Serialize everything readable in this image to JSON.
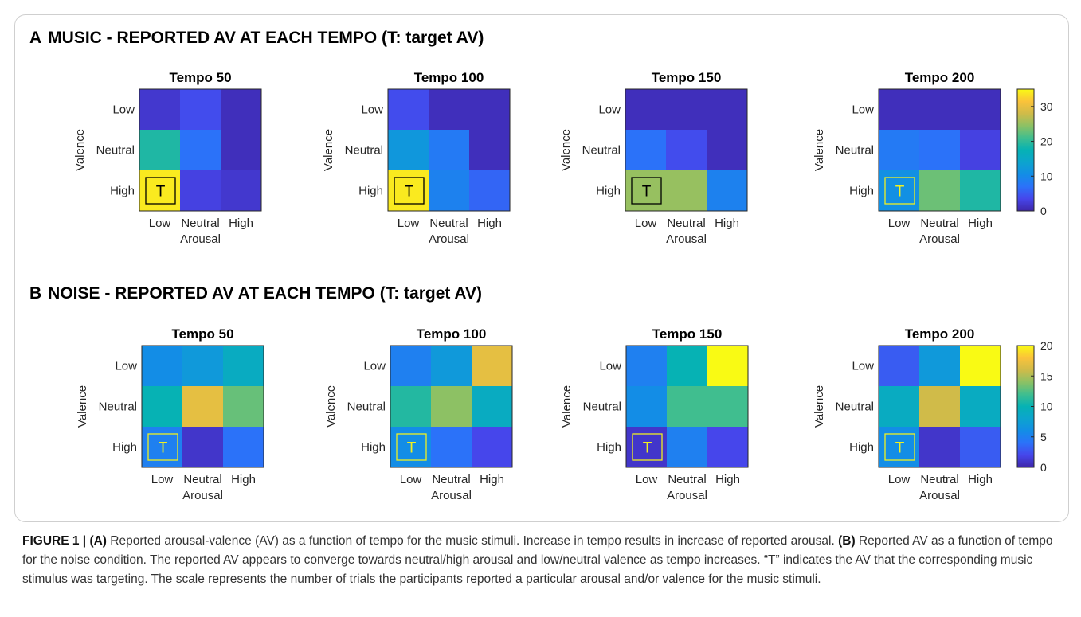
{
  "figure": {
    "panelA": {
      "letter": "A",
      "title": "MUSIC - REPORTED AV AT EACH TEMPO (T: target AV)"
    },
    "panelB": {
      "letter": "B",
      "title": "NOISE - REPORTED AV AT EACH TEMPO (T: target AV)"
    }
  },
  "caption": {
    "label": "FIGURE 1 |",
    "a_marker": "(A)",
    "a_text": " Reported arousal-valence (AV) as a function of tempo for the music stimuli. Increase in tempo results in increase of reported arousal. ",
    "b_marker": "(B)",
    "b_text": " Reported AV as a function of tempo for the noise condition. The reported AV appears to converge towards neutral/high arousal and low/neutral valence as tempo increases. “T” indicates the AV that the corresponding music stimulus was targeting. The scale represents the number of trials the participants reported a particular arousal and/or valence for the music stimuli."
  },
  "chart_data": [
    {
      "type": "heatmap",
      "panel": "A",
      "title": "Tempo 50",
      "xlabel": "Arousal",
      "ylabel": "Valence",
      "x_categories": [
        "Low",
        "Neutral",
        "High"
      ],
      "y_categories": [
        "Low",
        "Neutral",
        "High"
      ],
      "values": [
        [
          2,
          4,
          1
        ],
        [
          19,
          7,
          1
        ],
        [
          34,
          3,
          2
        ]
      ],
      "clim": [
        0,
        35
      ],
      "target": {
        "row": 2,
        "col": 0
      },
      "target_label": "T"
    },
    {
      "type": "heatmap",
      "panel": "A",
      "title": "Tempo 100",
      "xlabel": "Arousal",
      "ylabel": "Valence",
      "x_categories": [
        "Low",
        "Neutral",
        "High"
      ],
      "y_categories": [
        "Low",
        "Neutral",
        "High"
      ],
      "values": [
        [
          4,
          1,
          1
        ],
        [
          12,
          8,
          1
        ],
        [
          34,
          9,
          6
        ]
      ],
      "clim": [
        0,
        35
      ],
      "target": {
        "row": 2,
        "col": 0
      },
      "target_label": "T"
    },
    {
      "type": "heatmap",
      "panel": "A",
      "title": "Tempo 150",
      "xlabel": "Arousal",
      "ylabel": "Valence",
      "x_categories": [
        "Low",
        "Neutral",
        "High"
      ],
      "y_categories": [
        "Low",
        "Neutral",
        "High"
      ],
      "values": [
        [
          1,
          1,
          1
        ],
        [
          7,
          4,
          1
        ],
        [
          25,
          25,
          9
        ]
      ],
      "clim": [
        0,
        35
      ],
      "target": {
        "row": 2,
        "col": 0
      },
      "target_label": "T"
    },
    {
      "type": "heatmap",
      "panel": "A",
      "title": "Tempo 200",
      "xlabel": "Arousal",
      "ylabel": "Valence",
      "x_categories": [
        "Low",
        "Neutral",
        "High"
      ],
      "y_categories": [
        "Low",
        "Neutral",
        "High"
      ],
      "values": [
        [
          1,
          1,
          1
        ],
        [
          8,
          7,
          3
        ],
        [
          11,
          23,
          19
        ]
      ],
      "clim": [
        0,
        35
      ],
      "target": {
        "row": 2,
        "col": 0
      },
      "target_label": "T",
      "colorbar": {
        "ticks": [
          0,
          10,
          20,
          30
        ]
      }
    },
    {
      "type": "heatmap",
      "panel": "B",
      "title": "Tempo 50",
      "xlabel": "Arousal",
      "ylabel": "Valence",
      "x_categories": [
        "Low",
        "Neutral",
        "High"
      ],
      "y_categories": [
        "Low",
        "Neutral",
        "High"
      ],
      "values": [
        [
          6,
          7,
          9
        ],
        [
          10,
          17,
          13
        ],
        [
          5,
          1,
          4
        ]
      ],
      "clim": [
        0,
        20
      ],
      "target": {
        "row": 2,
        "col": 0
      },
      "target_label": "T"
    },
    {
      "type": "heatmap",
      "panel": "B",
      "title": "Tempo 100",
      "xlabel": "Arousal",
      "ylabel": "Valence",
      "x_categories": [
        "Low",
        "Neutral",
        "High"
      ],
      "y_categories": [
        "Low",
        "Neutral",
        "High"
      ],
      "values": [
        [
          5,
          7,
          17
        ],
        [
          11,
          14,
          9
        ],
        [
          6,
          4,
          2
        ]
      ],
      "clim": [
        0,
        20
      ],
      "target": {
        "row": 2,
        "col": 0
      },
      "target_label": "T"
    },
    {
      "type": "heatmap",
      "panel": "B",
      "title": "Tempo 150",
      "xlabel": "Arousal",
      "ylabel": "Valence",
      "x_categories": [
        "Low",
        "Neutral",
        "High"
      ],
      "y_categories": [
        "Low",
        "Neutral",
        "High"
      ],
      "values": [
        [
          5,
          10,
          20
        ],
        [
          6,
          12,
          12
        ],
        [
          1,
          5,
          2
        ]
      ],
      "clim": [
        0,
        20
      ],
      "target": {
        "row": 2,
        "col": 0
      },
      "target_label": "T"
    },
    {
      "type": "heatmap",
      "panel": "B",
      "title": "Tempo 200",
      "xlabel": "Arousal",
      "ylabel": "Valence",
      "x_categories": [
        "Low",
        "Neutral",
        "High"
      ],
      "y_categories": [
        "Low",
        "Neutral",
        "High"
      ],
      "values": [
        [
          3,
          7,
          20
        ],
        [
          9,
          16,
          9
        ],
        [
          6,
          1,
          3
        ]
      ],
      "clim": [
        0,
        20
      ],
      "target": {
        "row": 2,
        "col": 0
      },
      "target_label": "T",
      "colorbar": {
        "ticks": [
          0,
          5,
          10,
          15,
          20
        ]
      }
    }
  ]
}
